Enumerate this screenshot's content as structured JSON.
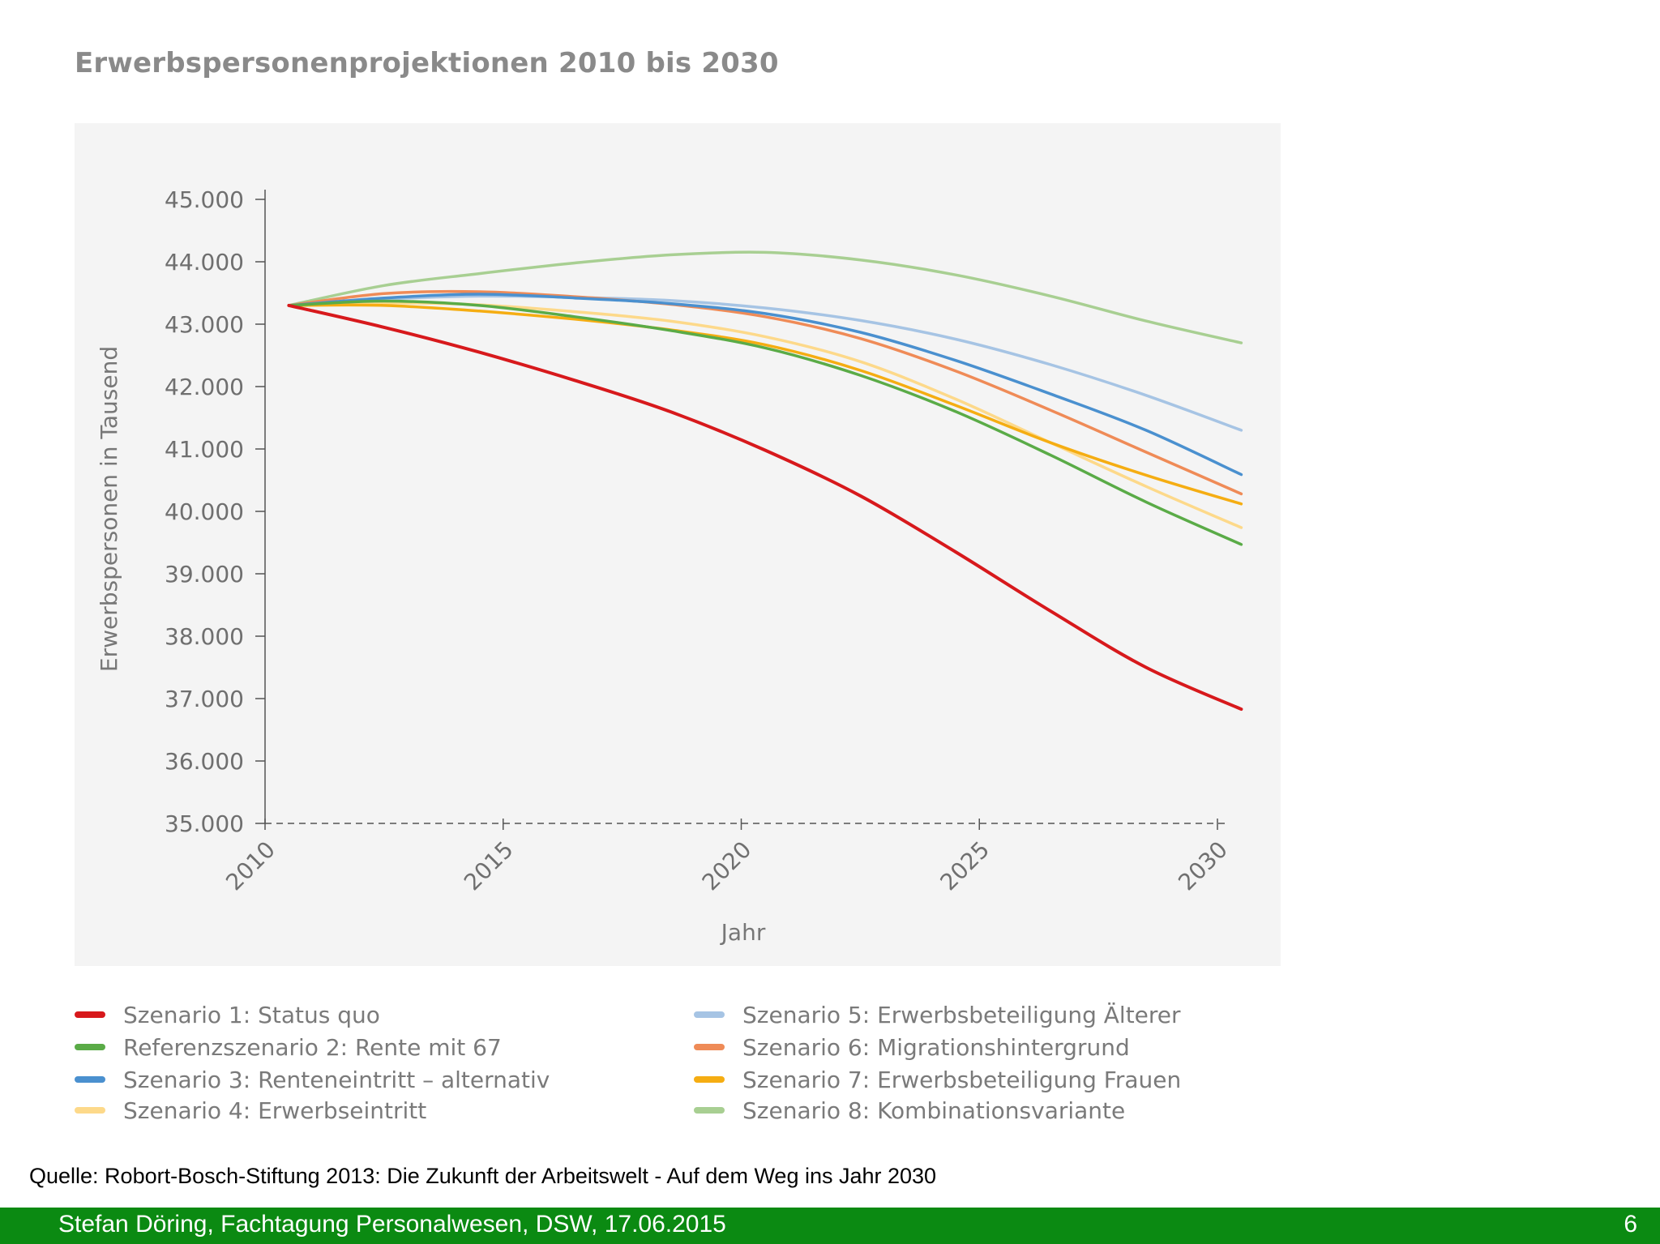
{
  "slide": {
    "title": "Erwerbspersonenprojektionen 2010 bis 2030",
    "source": "Quelle: Robort-Bosch-Stiftung 2013: Die Zukunft der Arbeitswelt - Auf dem Weg ins Jahr 2030"
  },
  "footer": {
    "text": "Stefan Döring, Fachtagung Personalwesen, DSW, 17.06.2015",
    "page": "6"
  },
  "chart_data": {
    "type": "line",
    "title": "Erwerbspersonenprojektionen 2010 bis 2030",
    "xlabel": "Jahr",
    "ylabel": "Erwerbspersonen in Tausend",
    "xlim": [
      2010,
      2030.3
    ],
    "ylim": [
      35000,
      45000
    ],
    "x_ticks": [
      2010,
      2015,
      2020,
      2025,
      2030
    ],
    "y_ticks": [
      35000,
      36000,
      37000,
      38000,
      39000,
      40000,
      41000,
      42000,
      43000,
      44000,
      45000
    ],
    "y_tick_labels": [
      "35.000",
      "36.000",
      "37.000",
      "38.000",
      "39.000",
      "40.000",
      "41.000",
      "42.000",
      "43.000",
      "44.000",
      "45.000"
    ],
    "grid": false,
    "legend_position": "bottom",
    "x": [
      2010.5,
      2012.5,
      2014.5,
      2016.5,
      2018.5,
      2020.5,
      2022.5,
      2024.5,
      2026.5,
      2028.5,
      2030.5
    ],
    "series": [
      {
        "name": "Szenario 1: Status quo",
        "color": "#d7191c",
        "values": [
          43300,
          42950,
          42550,
          42100,
          41600,
          40980,
          40250,
          39350,
          38400,
          37500,
          36830
        ]
      },
      {
        "name": "Referenzszenario 2: Rente mit 67",
        "color": "#5aab47",
        "values": [
          43300,
          43370,
          43300,
          43120,
          42900,
          42620,
          42180,
          41600,
          40900,
          40150,
          39470
        ]
      },
      {
        "name": "Szenario 3: Renteneintritt – alternativ",
        "color": "#4a90cf",
        "values": [
          43300,
          43420,
          43480,
          43420,
          43330,
          43170,
          42870,
          42420,
          41880,
          41300,
          40590
        ]
      },
      {
        "name": "Szenario 4: Erwerbseintritt",
        "color": "#fdd98a",
        "values": [
          43300,
          43340,
          43310,
          43200,
          43050,
          42800,
          42400,
          41800,
          41100,
          40400,
          39740
        ]
      },
      {
        "name": "Szenario 5: Erwerbsbeteiligung Älterer",
        "color": "#a6c4e4",
        "values": [
          43300,
          43400,
          43450,
          43430,
          43380,
          43260,
          43060,
          42760,
          42350,
          41860,
          41300
        ]
      },
      {
        "name": "Szenario 6: Migrationshintergrund",
        "color": "#ef8b57",
        "values": [
          43300,
          43490,
          43520,
          43440,
          43320,
          43120,
          42770,
          42250,
          41620,
          40950,
          40280
        ]
      },
      {
        "name": "Szenario 7: Erwerbsbeteiligung Frauen",
        "color": "#f5ad12",
        "values": [
          43300,
          43300,
          43210,
          43080,
          42910,
          42670,
          42260,
          41700,
          41100,
          40580,
          40120
        ]
      },
      {
        "name": "Szenario 8: Kombinationsvariante",
        "color": "#a8cf92",
        "values": [
          43300,
          43620,
          43810,
          43980,
          44110,
          44150,
          44030,
          43790,
          43450,
          43050,
          42700
        ]
      }
    ]
  }
}
